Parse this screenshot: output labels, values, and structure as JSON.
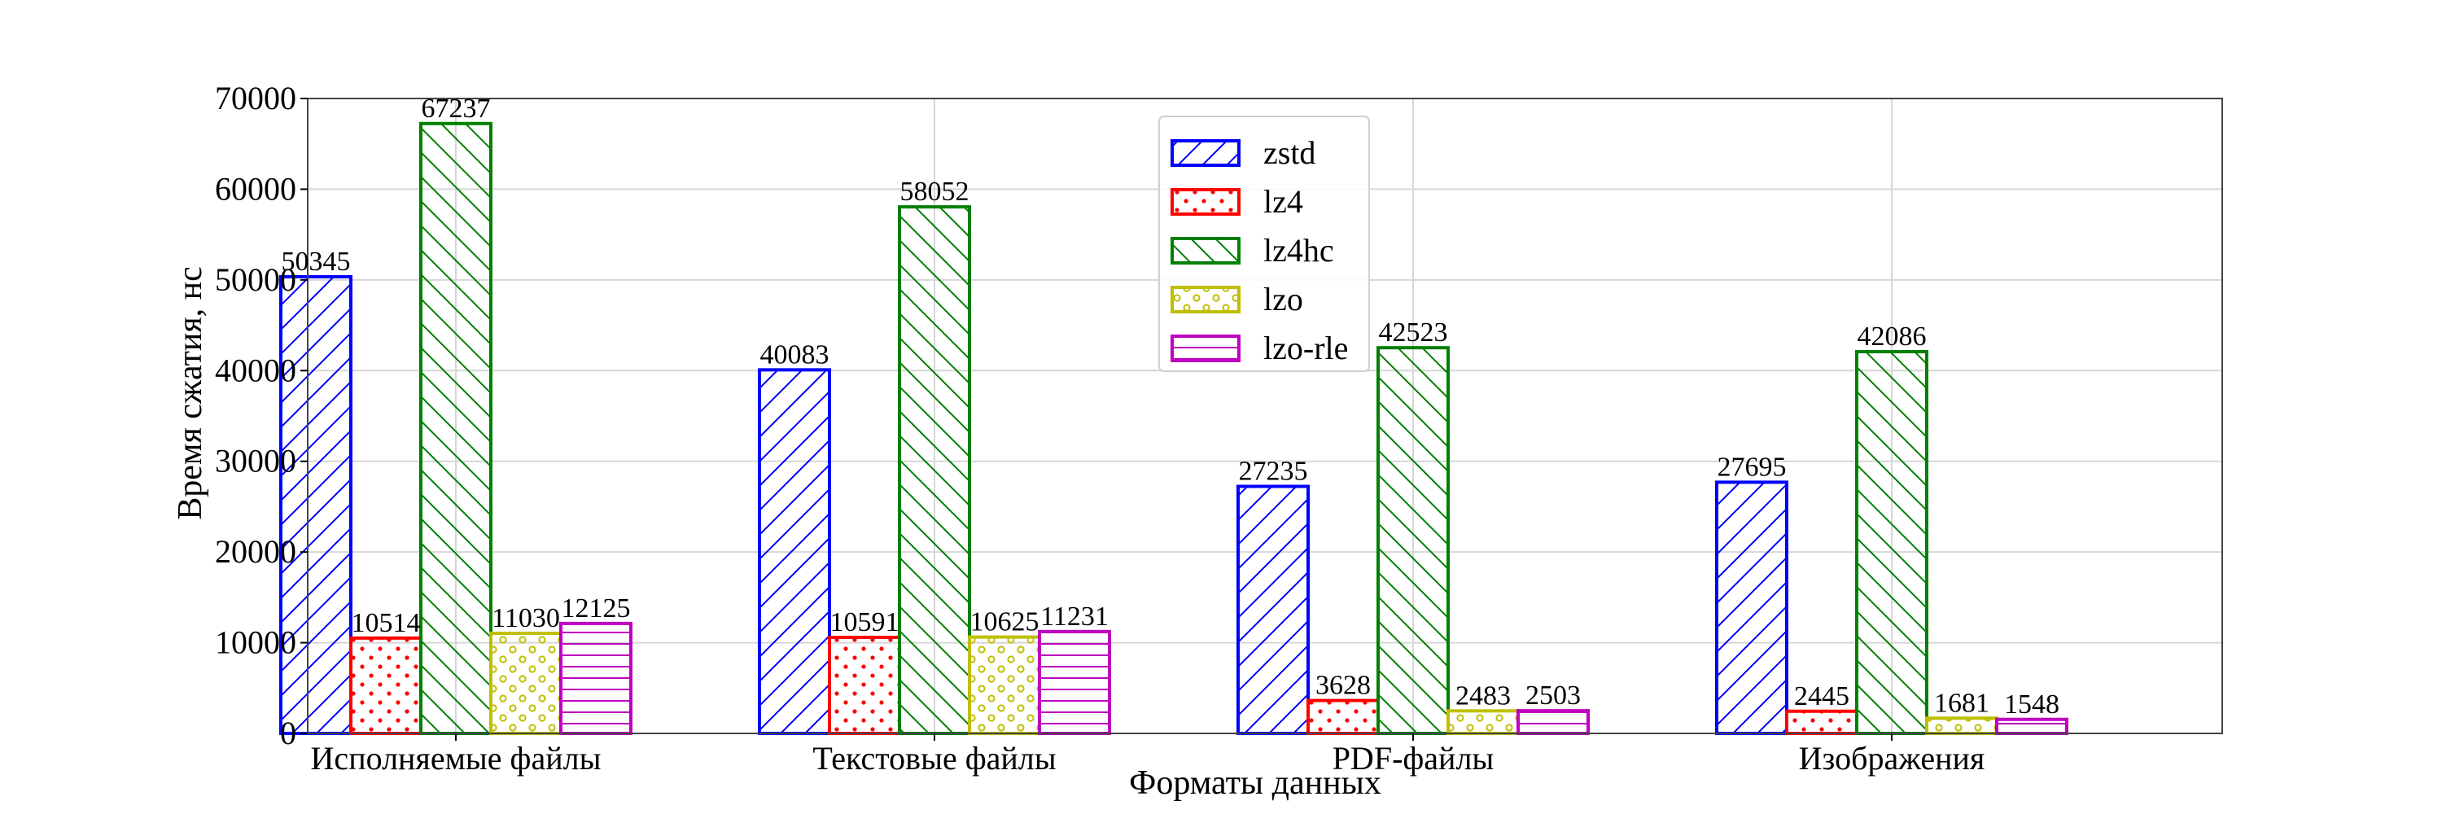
{
  "chart_data": {
    "type": "bar",
    "title": "",
    "xlabel": "Форматы данных",
    "ylabel": "Время сжатия, нс",
    "ylim": [
      0,
      70000
    ],
    "yticks": [
      0,
      10000,
      20000,
      30000,
      40000,
      50000,
      60000,
      70000
    ],
    "grid": true,
    "legend_position": "top-center",
    "categories": [
      "Исполняемые файлы",
      "Текстовые файлы",
      "PDF-файлы",
      "Изображения"
    ],
    "series": [
      {
        "name": "zstd",
        "color": "#0000ff",
        "hatch": "diagonal-forward",
        "values": [
          50345,
          40083,
          27235,
          27695
        ]
      },
      {
        "name": "lz4",
        "color": "#ff0000",
        "hatch": "dots",
        "values": [
          10514,
          10591,
          3628,
          2445
        ]
      },
      {
        "name": "lz4hc",
        "color": "#008000",
        "hatch": "diagonal-backward",
        "values": [
          67237,
          58052,
          42523,
          42086
        ]
      },
      {
        "name": "lzo",
        "color": "#bfbf00",
        "hatch": "circles",
        "values": [
          11030,
          10625,
          2483,
          1681
        ]
      },
      {
        "name": "lzo-rle",
        "color": "#bf00bf",
        "hatch": "horizontal",
        "values": [
          12125,
          11231,
          2503,
          1548
        ]
      }
    ]
  }
}
